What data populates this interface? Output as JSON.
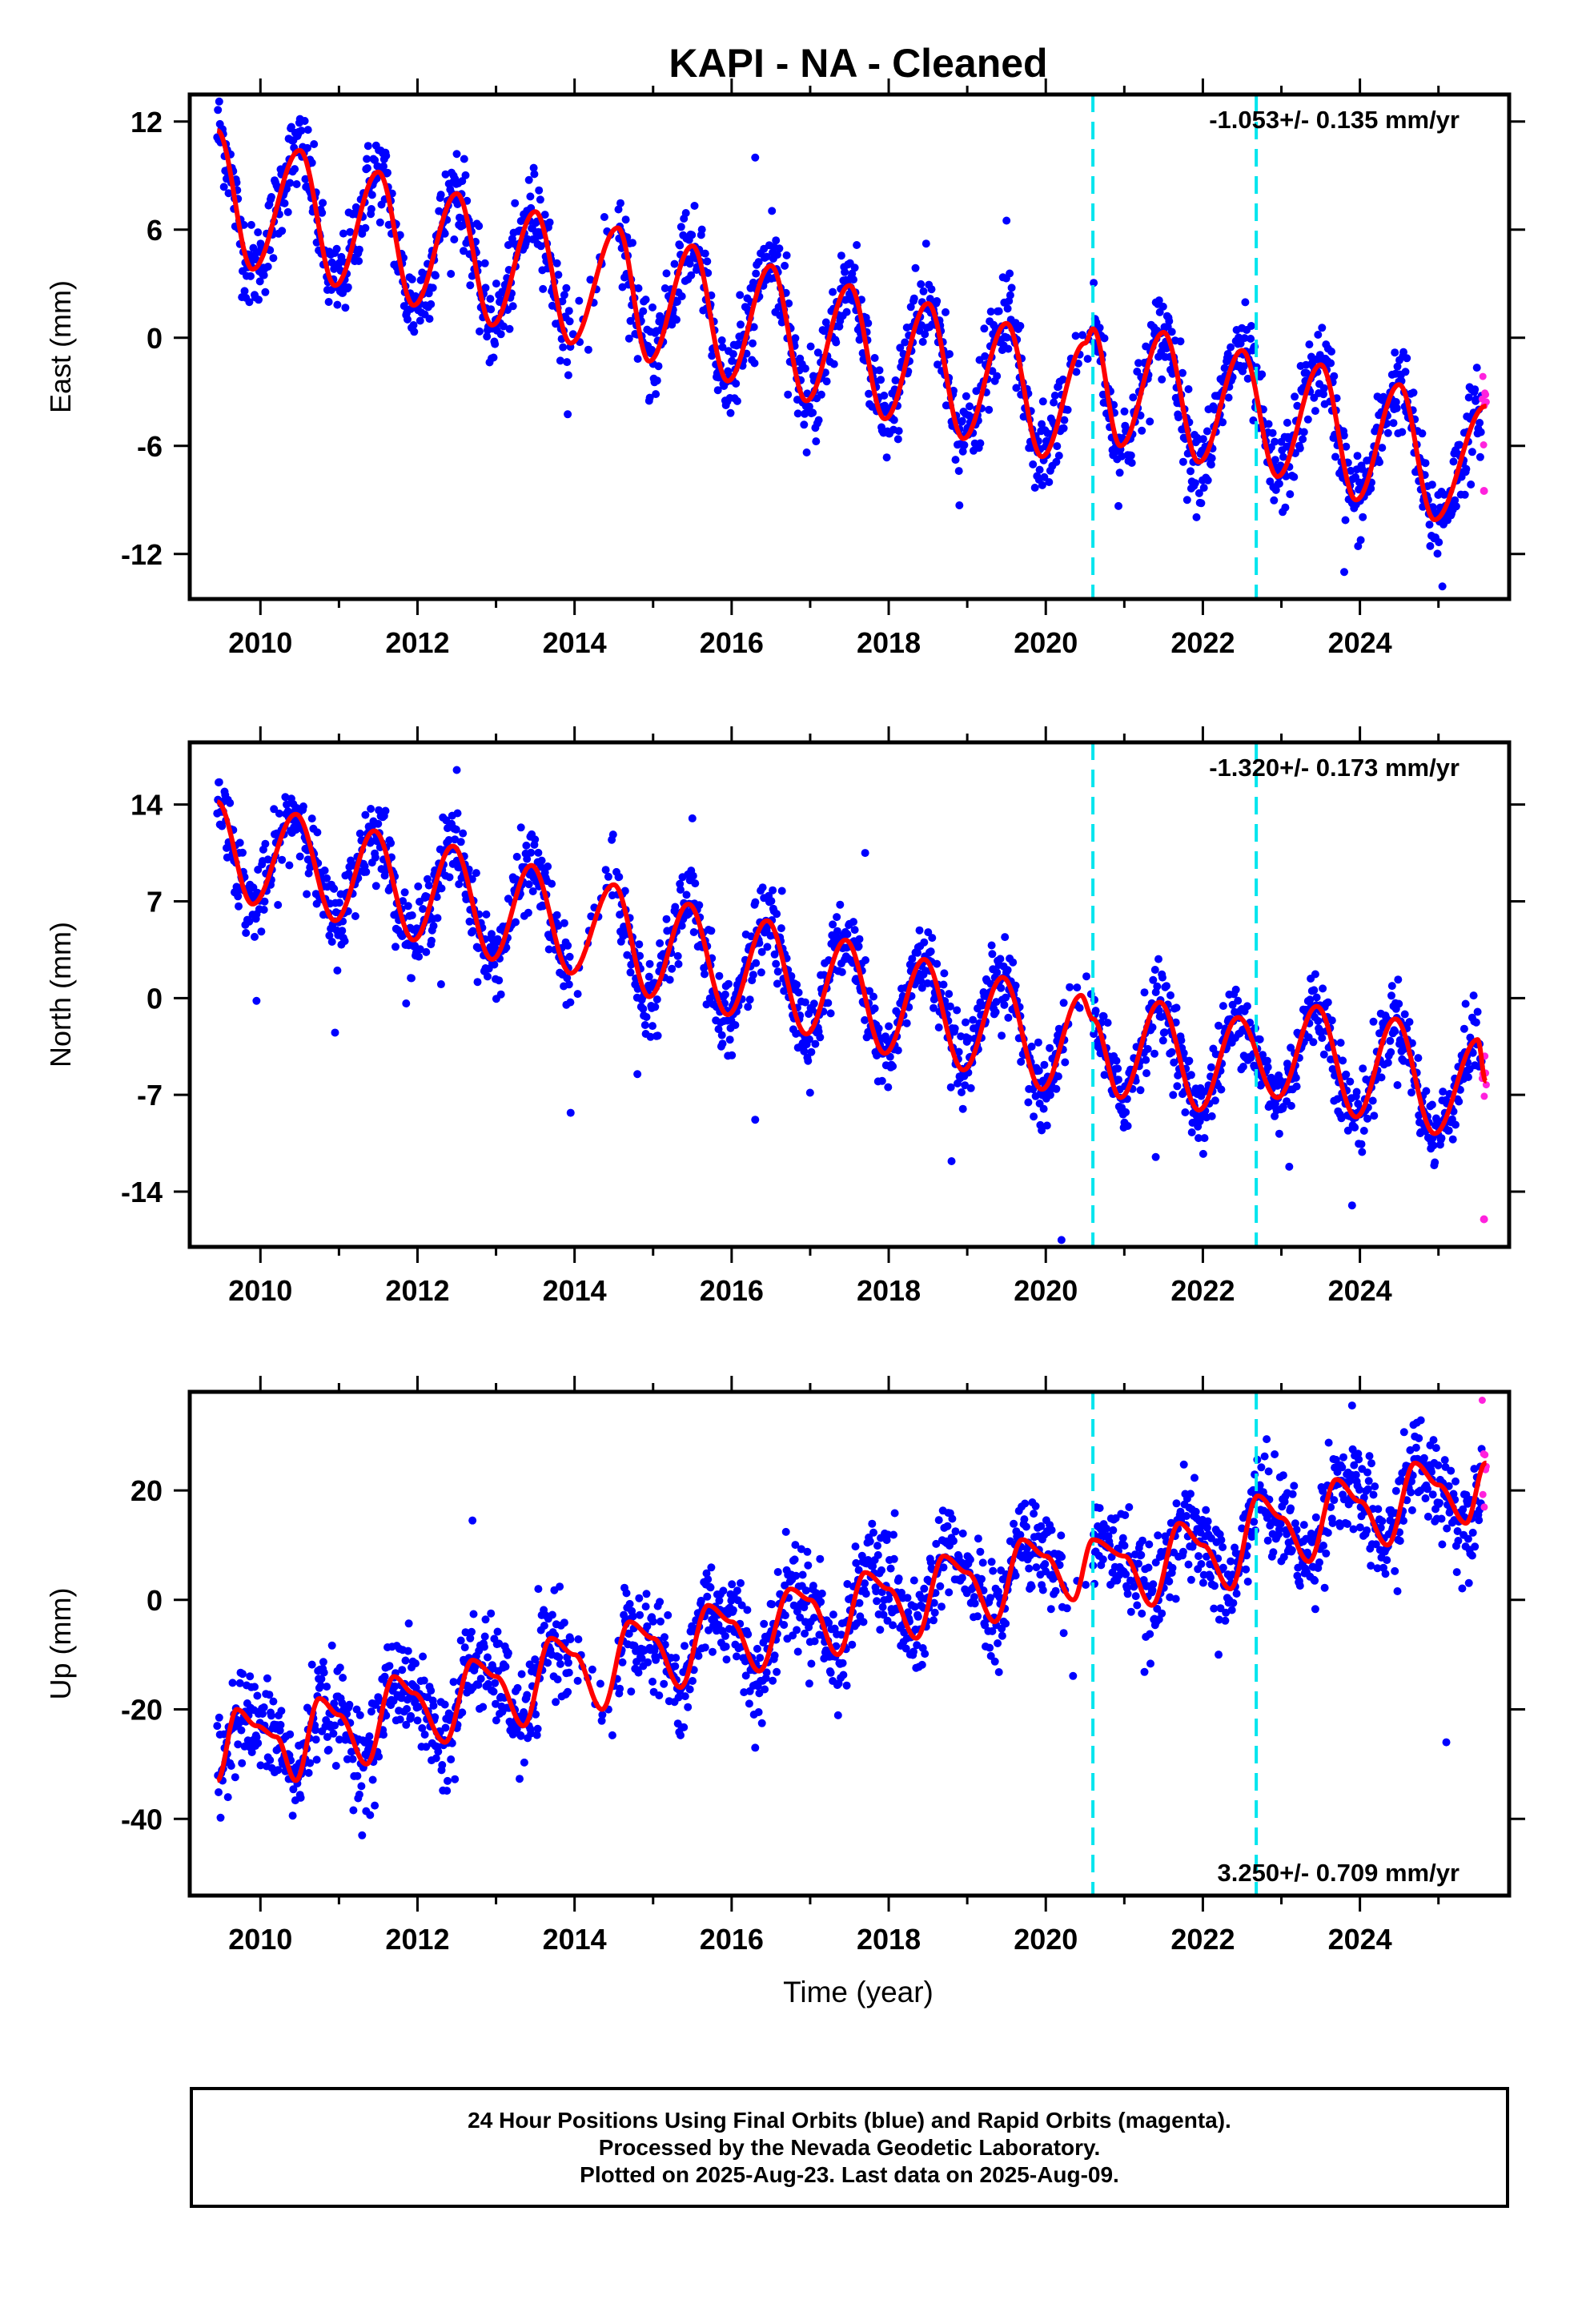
{
  "chart_data": {
    "title": "KAPI  - NA - Cleaned",
    "x_label": "Time (year)",
    "x_range": [
      2009.1,
      2025.9
    ],
    "x_ticks": [
      2010,
      2012,
      2014,
      2016,
      2018,
      2020,
      2022,
      2024
    ],
    "equipment_changes": [
      2020.6,
      2022.68
    ],
    "data_start": 2009.45,
    "data_end": 2025.61,
    "rapid_start": 2025.55,
    "colors": {
      "final_orbits": "#0000ff",
      "rapid_orbits": "#ff22dd",
      "model_fit": "#ff0000",
      "equipment_change": "#00e5ee",
      "frame": "#000000"
    },
    "panels": [
      {
        "id": "east",
        "type": "scatter",
        "ylabel": "East (mm)",
        "ylim": [
          -14.5,
          13.5
        ],
        "yticks": [
          12,
          6,
          0,
          -6,
          -12
        ],
        "ytick_labels": [
          "12",
          "6",
          "0",
          "-6",
          "-12"
        ],
        "velocity_label": "-1.053+/- 0.135 mm/yr",
        "velocity_position": "top-right",
        "fit": {
          "x": [
            2009.45,
            2009.9,
            2010.5,
            2010.95,
            2011.5,
            2011.95,
            2012.5,
            2012.95,
            2013.5,
            2013.95,
            2014.55,
            2014.95,
            2015.5,
            2015.95,
            2016.5,
            2016.95,
            2017.5,
            2017.95,
            2018.5,
            2018.95,
            2019.5,
            2019.95,
            2020.5,
            2020.6,
            2020.95,
            2021.5,
            2021.95,
            2022.5,
            2022.95,
            2023.5,
            2023.95,
            2024.5,
            2024.95,
            2025.6
          ],
          "y": [
            11.5,
            3.8,
            10.4,
            2.9,
            9.2,
            1.8,
            8.0,
            0.7,
            7.0,
            -0.3,
            6.1,
            -1.3,
            5.1,
            -2.4,
            4.0,
            -3.5,
            2.9,
            -4.5,
            1.9,
            -5.6,
            0.8,
            -6.6,
            -0.3,
            0.5,
            -6.0,
            0.3,
            -6.9,
            -0.7,
            -7.7,
            -1.5,
            -9.0,
            -2.6,
            -10.1,
            -3.8
          ]
        }
      },
      {
        "id": "north",
        "type": "scatter",
        "ylabel": "North (mm)",
        "ylim": [
          -18,
          18.5
        ],
        "yticks": [
          14,
          7,
          0,
          -7,
          -14
        ],
        "ytick_labels": [
          "14",
          "7",
          "0",
          "-7",
          "-14"
        ],
        "velocity_label": "-1.320+/- 0.173 mm/yr",
        "velocity_position": "top-right",
        "fit": {
          "x": [
            2009.45,
            2009.9,
            2010.45,
            2010.95,
            2011.45,
            2011.95,
            2012.45,
            2012.95,
            2013.45,
            2013.95,
            2014.5,
            2014.95,
            2015.45,
            2015.95,
            2016.45,
            2016.95,
            2017.45,
            2017.95,
            2018.45,
            2018.95,
            2019.45,
            2019.95,
            2020.45,
            2020.6,
            2020.95,
            2021.45,
            2021.95,
            2022.45,
            2022.95,
            2023.45,
            2023.95,
            2024.45,
            2024.95,
            2025.5,
            2025.6
          ],
          "y": [
            14.2,
            6.8,
            13.3,
            5.6,
            12.1,
            4.2,
            11.0,
            2.8,
            9.6,
            1.8,
            8.2,
            0.1,
            6.8,
            -1.2,
            5.6,
            -2.6,
            4.2,
            -4.0,
            2.8,
            -5.2,
            1.5,
            -6.6,
            0.2,
            -1.5,
            -7.2,
            -0.3,
            -8.1,
            -1.4,
            -7.2,
            -0.6,
            -8.6,
            -1.5,
            -9.8,
            -3.0,
            -6.0
          ]
        }
      },
      {
        "id": "up",
        "type": "scatter",
        "ylabel": "Up (mm)",
        "ylim": [
          -54,
          38
        ],
        "yticks": [
          20,
          0,
          -20,
          -40
        ],
        "ytick_labels": [
          "20",
          "0",
          "-20",
          "-40"
        ],
        "velocity_label": "3.250+/- 0.709 mm/yr",
        "velocity_position": "bottom-right",
        "fit": {
          "x": [
            2009.45,
            2009.7,
            2009.95,
            2010.2,
            2010.45,
            2010.75,
            2011.0,
            2011.35,
            2011.7,
            2011.95,
            2012.35,
            2012.7,
            2013.0,
            2013.35,
            2013.7,
            2014.0,
            2014.35,
            2014.7,
            2015.0,
            2015.35,
            2015.7,
            2016.0,
            2016.35,
            2016.75,
            2017.0,
            2017.35,
            2017.7,
            2018.0,
            2018.35,
            2018.7,
            2019.0,
            2019.35,
            2019.7,
            2020.0,
            2020.35,
            2020.6,
            2021.0,
            2021.35,
            2021.7,
            2022.0,
            2022.35,
            2022.7,
            2023.0,
            2023.35,
            2023.7,
            2024.0,
            2024.35,
            2024.7,
            2025.0,
            2025.35,
            2025.6
          ],
          "y": [
            -33,
            -20,
            -23,
            -25,
            -33,
            -18,
            -21,
            -30,
            -14,
            -17,
            -26,
            -11,
            -14,
            -23,
            -7,
            -10,
            -20,
            -4,
            -7,
            -16,
            -1,
            -4,
            -13,
            2,
            0,
            -10,
            5,
            2,
            -7,
            8,
            5,
            -4,
            11,
            8,
            0,
            11,
            8,
            -1,
            14,
            10,
            2,
            19,
            15,
            7,
            22,
            18,
            10,
            25,
            21,
            14,
            25
          ]
        }
      }
    ],
    "noise": {
      "east": {
        "sd": 1.2,
        "outliers": [
          [
            2016.3,
            10.0
          ],
          [
            2023.8,
            -13.0
          ],
          [
            2025.05,
            -13.8
          ],
          [
            2019.5,
            6.5
          ],
          [
            2012.5,
            10.2
          ],
          [
            2018.9,
            -9.3
          ],
          [
            2020.8,
            -3.5
          ],
          [
            2021.8,
            -9.0
          ],
          [
            2025.58,
            -8.5
          ]
        ]
      },
      "north": {
        "sd": 1.4,
        "outliers": [
          [
            2012.5,
            16.5
          ],
          [
            2015.5,
            13.0
          ],
          [
            2017.7,
            10.5
          ],
          [
            2009.95,
            -0.2
          ],
          [
            2010.95,
            -2.5
          ],
          [
            2012.3,
            1.0
          ],
          [
            2013.95,
            -8.3
          ],
          [
            2014.8,
            -5.5
          ],
          [
            2016.3,
            -8.8
          ],
          [
            2018.8,
            -11.8
          ],
          [
            2020.2,
            -17.5
          ],
          [
            2021.4,
            -11.5
          ],
          [
            2023.1,
            -12.2
          ],
          [
            2023.9,
            -15.0
          ],
          [
            2025.58,
            -16.0
          ]
        ]
      },
      "up": {
        "sd": 4.5,
        "outliers": [
          [
            2025.1,
            -26.0
          ],
          [
            2016.3,
            -27.0
          ],
          [
            2012.7,
            14.5
          ],
          [
            2023.9,
            35.5
          ],
          [
            2022.2,
            -10.0
          ]
        ]
      }
    },
    "caption": {
      "line1": "24 Hour Positions Using Final Orbits (blue) and Rapid Orbits (magenta).",
      "line2": "Processed by the Nevada Geodetic Laboratory.",
      "line3": "Plotted on 2025-Aug-23. Last data on 2025-Aug-09."
    }
  }
}
